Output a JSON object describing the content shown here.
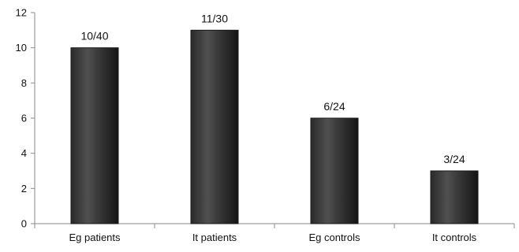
{
  "chart_data": {
    "type": "bar",
    "title": "",
    "xlabel": "",
    "ylabel": "",
    "categories": [
      "Eg patients",
      "It patients",
      "Eg controls",
      "It controls"
    ],
    "values": [
      10,
      11,
      6,
      3
    ],
    "data_labels": [
      "10/40",
      "11/30",
      "6/24",
      "3/24"
    ],
    "ylim": [
      0,
      12
    ],
    "yticks": [
      0,
      2,
      4,
      6,
      8,
      10,
      12
    ],
    "grid": false,
    "legend": "none",
    "colors": {
      "bar_dark": "#1a1a1a",
      "bar_mid": "#4a4a4a",
      "bar_light": "#6e6e6e",
      "axis": "#8a8a8a",
      "text": "#111111"
    }
  }
}
